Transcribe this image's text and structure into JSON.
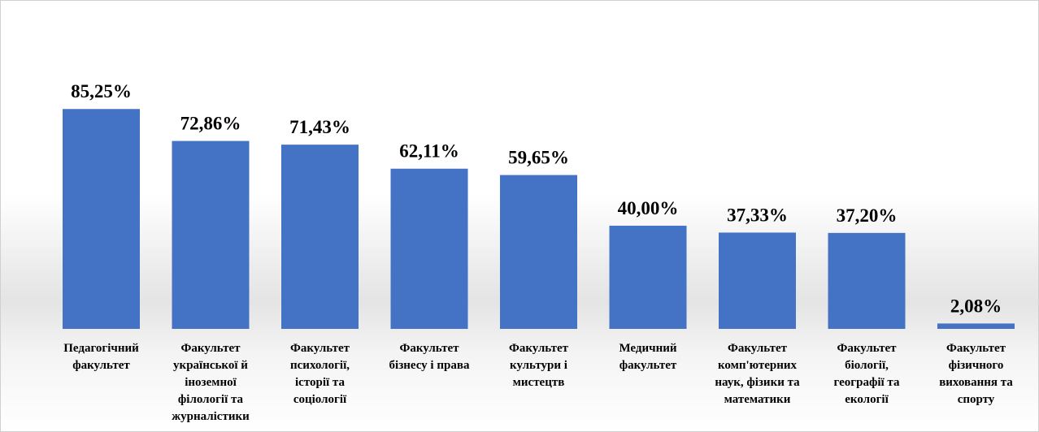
{
  "chart_data": {
    "type": "bar",
    "title": "",
    "categories": [
      [
        "Педагогічний",
        "факультет"
      ],
      [
        "Факультет",
        "української й",
        "іноземної",
        "філології та",
        "журналістики"
      ],
      [
        "Факультет",
        "психології,",
        "історії та",
        "соціології"
      ],
      [
        "Факультет",
        "бізнесу і права"
      ],
      [
        "Факультет",
        "культури і",
        "мистецтв"
      ],
      [
        "Медичний",
        "факультет"
      ],
      [
        "Факультет",
        "комп'ютерних",
        "наук, фізики та",
        "математики"
      ],
      [
        "Факультет",
        "біології,",
        "географії та",
        "екології"
      ],
      [
        "Факультет",
        "фізичного",
        "виховання та",
        "спорту"
      ]
    ],
    "values": [
      85.25,
      72.86,
      71.43,
      62.11,
      59.65,
      40.0,
      37.33,
      37.2,
      2.08
    ],
    "data_labels": [
      "85,25%",
      "72,86%",
      "71,43%",
      "62,11%",
      "59,65%",
      "40,00%",
      "37,33%",
      "37,20%",
      "2,08%"
    ],
    "ylim": [
      0,
      100
    ],
    "bar_color": "#4472c4",
    "grid": false,
    "legend": "none"
  }
}
